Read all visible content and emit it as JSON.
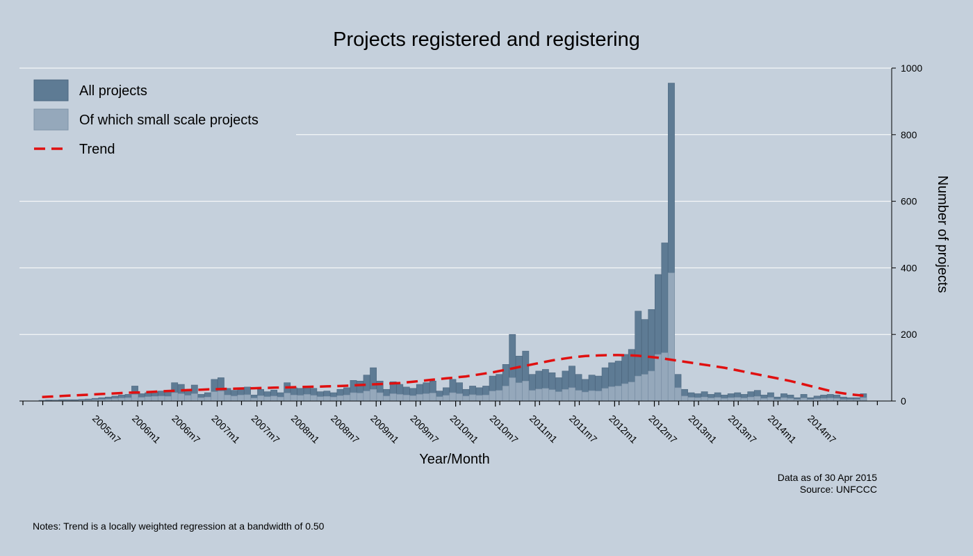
{
  "chart_data": {
    "type": "bar",
    "title": "Projects registered and registering",
    "xlabel": "Year/Month",
    "ylabel": "Number of projects",
    "ylim": [
      0,
      1000
    ],
    "y_ticks": [
      0,
      200,
      400,
      600,
      800,
      1000
    ],
    "y_tick_labels": [
      "0",
      "200",
      "400",
      "600",
      "800",
      "1000"
    ],
    "x_tick_labels": [
      "2005m7",
      "2006m1",
      "2006m7",
      "2007m1",
      "2007m7",
      "2008m1",
      "2008m7",
      "2009m1",
      "2009m7",
      "2010m1",
      "2010m7",
      "2011m1",
      "2011m7",
      "2012m1",
      "2012m7",
      "2013m1",
      "2013m7",
      "2014m1",
      "2014m7"
    ],
    "x_start": "2004m11",
    "grid": true,
    "legend_position": "top-left",
    "stacked_overlay": true,
    "series": [
      {
        "name": "All projects",
        "color": "#5e7b94",
        "values": [
          2,
          3,
          3,
          4,
          4,
          4,
          5,
          6,
          8,
          10,
          12,
          15,
          18,
          20,
          45,
          22,
          25,
          28,
          30,
          28,
          55,
          50,
          35,
          48,
          20,
          25,
          65,
          70,
          38,
          32,
          40,
          42,
          18,
          35,
          28,
          33,
          25,
          55,
          40,
          38,
          45,
          38,
          28,
          30,
          25,
          35,
          40,
          62,
          60,
          78,
          100,
          60,
          35,
          58,
          50,
          42,
          38,
          50,
          55,
          60,
          30,
          40,
          65,
          55,
          35,
          45,
          40,
          45,
          75,
          80,
          110,
          200,
          135,
          150,
          80,
          90,
          95,
          85,
          70,
          90,
          105,
          80,
          65,
          78,
          75,
          100,
          115,
          120,
          140,
          155,
          270,
          245,
          275,
          380,
          475,
          955,
          80,
          35,
          25,
          22,
          28,
          20,
          25,
          18,
          22,
          25,
          20,
          28,
          32,
          18,
          25,
          12,
          22,
          18,
          10,
          20,
          10,
          15,
          18,
          20,
          18,
          12,
          10,
          10,
          22
        ]
      },
      {
        "name": "Of which small scale projects",
        "color": "#95a8bb",
        "values": [
          1,
          1,
          2,
          2,
          2,
          2,
          3,
          3,
          4,
          5,
          6,
          8,
          9,
          10,
          20,
          11,
          13,
          14,
          15,
          14,
          25,
          22,
          17,
          22,
          10,
          12,
          28,
          30,
          18,
          15,
          18,
          19,
          9,
          16,
          13,
          15,
          12,
          24,
          18,
          17,
          20,
          17,
          13,
          14,
          12,
          16,
          18,
          25,
          24,
          30,
          35,
          25,
          15,
          22,
          20,
          18,
          16,
          20,
          22,
          24,
          13,
          17,
          25,
          22,
          15,
          19,
          17,
          18,
          30,
          32,
          45,
          70,
          55,
          60,
          32,
          36,
          38,
          34,
          28,
          35,
          40,
          32,
          27,
          31,
          30,
          38,
          43,
          45,
          52,
          57,
          75,
          80,
          90,
          140,
          145,
          385,
          40,
          15,
          11,
          10,
          12,
          9,
          11,
          8,
          10,
          11,
          9,
          12,
          14,
          8,
          11,
          5,
          10,
          8,
          5,
          9,
          5,
          7,
          8,
          9,
          8,
          5,
          5,
          5,
          10
        ]
      },
      {
        "name": "Trend",
        "color": "#e01010",
        "line_style": "dashed",
        "values": [
          12,
          13,
          14,
          15,
          16,
          17,
          18,
          19,
          20,
          21,
          22,
          23,
          24,
          25,
          25.5,
          26,
          27,
          28,
          29,
          30,
          31,
          32,
          33,
          33.5,
          34,
          35,
          35.5,
          36,
          36.5,
          37,
          37.5,
          38,
          38.5,
          39,
          39.5,
          40,
          40.5,
          41,
          41.5,
          42,
          42.5,
          43,
          43.5,
          44,
          44.5,
          45,
          46,
          47,
          48,
          49,
          50,
          51,
          52,
          53,
          54,
          56,
          58,
          60,
          62,
          64,
          66,
          68,
          70,
          72,
          74,
          77,
          80,
          83,
          86,
          90,
          94,
          98,
          102,
          106,
          110,
          114,
          118,
          122,
          125,
          128,
          131,
          133,
          135,
          136,
          137,
          137.5,
          138,
          138,
          137.5,
          137,
          136,
          134,
          132,
          130,
          127,
          124,
          121,
          118,
          115,
          112,
          109,
          106,
          103,
          100,
          96,
          92,
          88,
          84,
          80,
          76,
          72,
          68,
          64,
          60,
          55,
          50,
          45,
          40,
          35,
          30,
          26,
          23,
          20,
          18,
          16
        ]
      }
    ]
  },
  "footer": {
    "data_as_of": "Data as of 30 Apr 2015",
    "source": "Source: UNFCCC",
    "notes": "Notes: Trend is a locally weighted regression at a bandwidth of 0.50"
  }
}
